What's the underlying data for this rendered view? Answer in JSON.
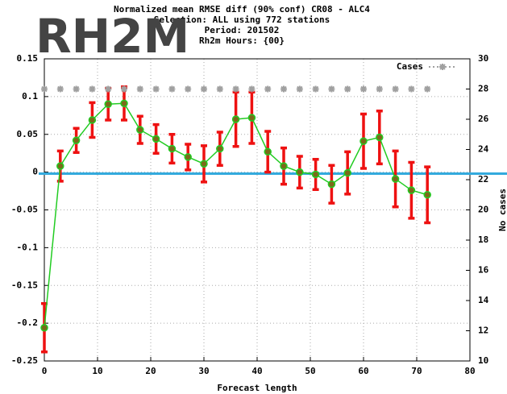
{
  "chart_data": {
    "type": "errorbar_line",
    "overlay_title": "RH2M",
    "title_lines": [
      "Normalized mean RMSE diff (90% conf) CR08 - ALC4",
      "Selection: ALL using   772 stations",
      "Period:   201502",
      "Rh2m   Hours: {00}"
    ],
    "xlabel": "Forecast length",
    "y2label": "No cases",
    "x": [
      0,
      3,
      6,
      9,
      12,
      15,
      18,
      21,
      24,
      27,
      30,
      33,
      36,
      39,
      42,
      45,
      48,
      51,
      54,
      57,
      60,
      63,
      66,
      69,
      72
    ],
    "series": [
      {
        "color": "#22cc22",
        "marker_color": "#7a6a1a",
        "error_color": "#ee1111",
        "values": [
          -0.206,
          0.008,
          0.042,
          0.069,
          0.09,
          0.091,
          0.056,
          0.044,
          0.031,
          0.02,
          0.011,
          0.031,
          0.07,
          0.072,
          0.027,
          0.008,
          0,
          -0.003,
          -0.016,
          -0.001,
          0.041,
          0.046,
          -0.009,
          -0.024,
          -0.03
        ],
        "errors": [
          0.032,
          0.02,
          0.016,
          0.023,
          0.021,
          0.022,
          0.018,
          0.019,
          0.019,
          0.017,
          0.024,
          0.022,
          0.036,
          0.034,
          0.027,
          0.024,
          0.021,
          0.02,
          0.025,
          0.028,
          0.036,
          0.035,
          0.037,
          0.037,
          0.037
        ]
      },
      {
        "name": "Cases",
        "color": "#a0a0a0",
        "axis": "y2",
        "values": [
          28,
          28,
          28,
          28,
          28,
          28,
          28,
          28,
          28,
          28,
          28,
          28,
          28,
          28,
          28,
          28,
          28,
          28,
          28,
          28,
          28,
          28,
          28,
          28,
          28
        ]
      }
    ],
    "reference_line": -0.002,
    "reference_color": "#33aadd",
    "xlim": [
      0,
      80
    ],
    "xticks": [
      0,
      10,
      20,
      30,
      40,
      50,
      60,
      70,
      80
    ],
    "ylim": [
      -0.25,
      0.15
    ],
    "yticks": [
      -0.25,
      -0.2,
      -0.15,
      -0.1,
      -0.05,
      0,
      0.05,
      0.1,
      0.15
    ],
    "y2lim": [
      10,
      30
    ],
    "y2ticks": [
      10,
      12,
      14,
      16,
      18,
      20,
      22,
      24,
      26,
      28,
      30
    ],
    "grid": true,
    "legend": "upper right"
  }
}
